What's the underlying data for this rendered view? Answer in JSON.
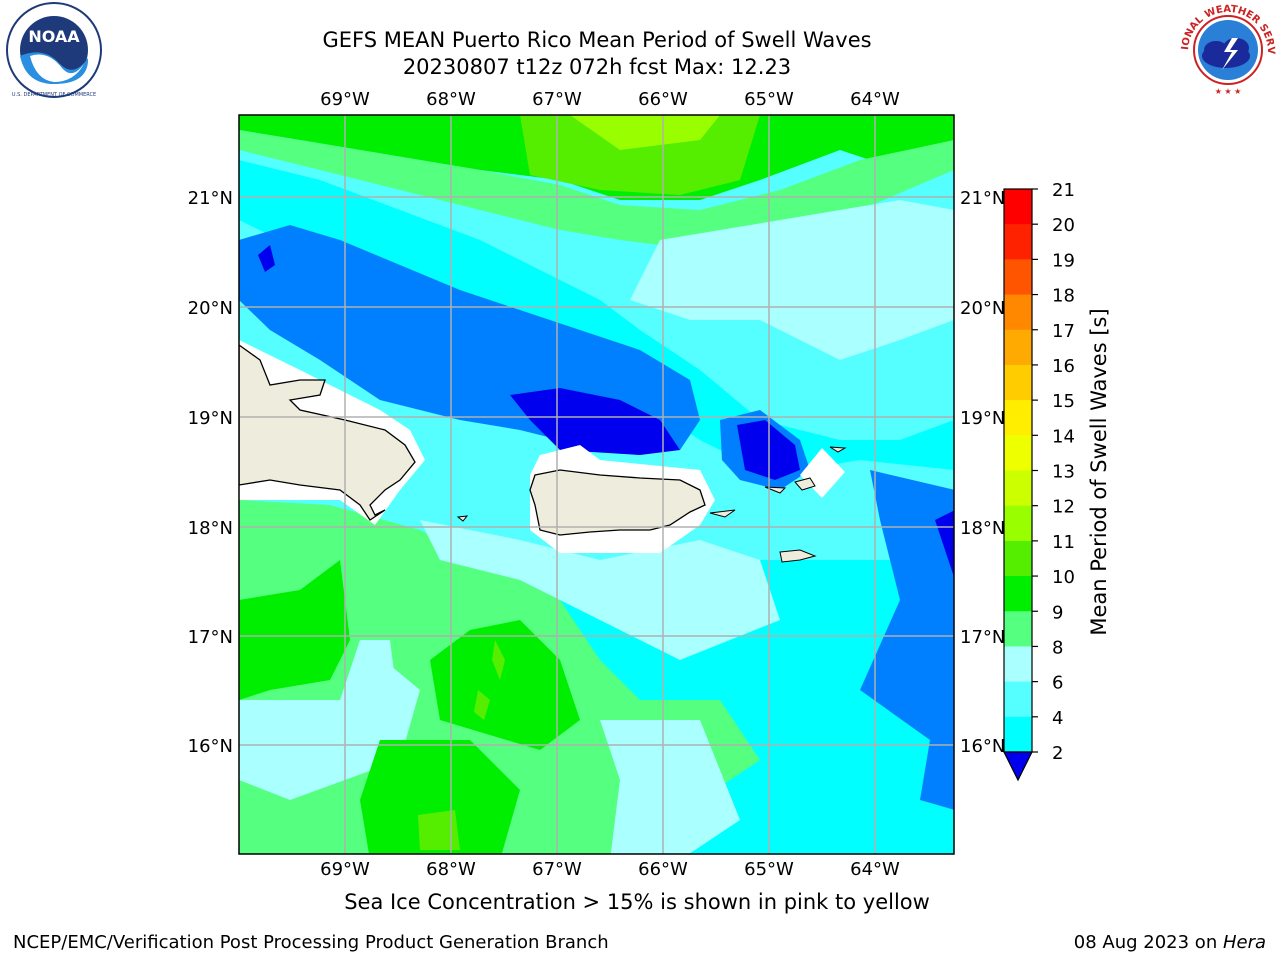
{
  "header": {
    "title_line1": "GEFS MEAN Puerto Rico Mean Period of Swell Waves",
    "title_line2": "20230807 t12z 072h fcst   Max: 12.23"
  },
  "logos": {
    "left": {
      "name": "NOAA",
      "ring_text": "NATIONAL OCEANIC AND ATMOSPHERIC ADMINISTRATION · U.S. DEPARTMENT OF COMMERCE"
    },
    "right": {
      "name": "NATIONAL WEATHER SERVICE"
    }
  },
  "map": {
    "lon_labels": [
      "69°W",
      "68°W",
      "67°W",
      "66°W",
      "65°W",
      "64°W"
    ],
    "lat_labels": [
      "21°N",
      "20°N",
      "19°N",
      "18°N",
      "17°N",
      "16°N"
    ],
    "land_color": "#eeecdc",
    "grid_color": "#b0b0b0"
  },
  "colorbar": {
    "label": "Mean Period of Swell Waves [s]",
    "ticks": [
      "2",
      "4",
      "6",
      "8",
      "9",
      "10",
      "11",
      "12",
      "13",
      "14",
      "15",
      "16",
      "17",
      "18",
      "19",
      "20",
      "21"
    ],
    "colors": [
      "#0000ee",
      "#0080ff",
      "#00ffff",
      "#55ffff",
      "#aaffff",
      "#55ff80",
      "#00ee00",
      "#55ee00",
      "#99ff00",
      "#ccff00",
      "#eeff00",
      "#ffee00",
      "#ffcc00",
      "#ffaa00",
      "#ff8800",
      "#ff5500",
      "#ff2200",
      "#ff0000"
    ]
  },
  "note": "Sea Ice Concentration > 15% is shown in pink to yellow",
  "footer": {
    "left": "NCEP/EMC/Verification Post Processing Product Generation Branch",
    "right_date": "08 Aug 2023 on ",
    "right_machine": "Hera"
  }
}
